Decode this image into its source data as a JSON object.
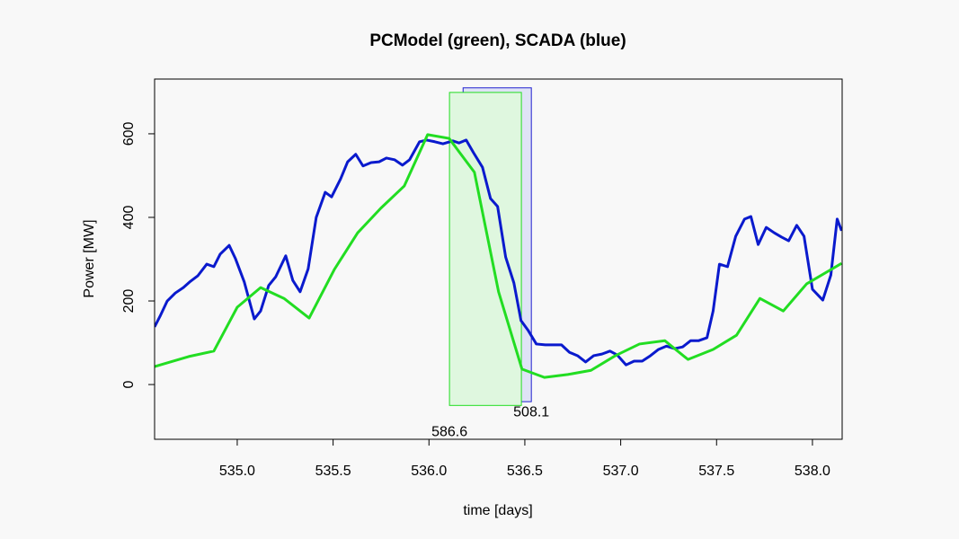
{
  "chart_data": {
    "type": "line",
    "title": "PCModel (green), SCADA (blue)",
    "xlabel": "time [days]",
    "ylabel": "Power [MW]",
    "xlim": [
      534.569,
      538.155
    ],
    "ylim": [
      -131,
      731
    ],
    "xticks": [
      {
        "value": 535,
        "label": "535.0"
      },
      535.5,
      {
        "value": 536,
        "label": "536.0"
      },
      536.5,
      {
        "value": 537,
        "label": "537.0"
      },
      537.5,
      {
        "value": 538,
        "label": "538.0"
      }
    ],
    "yticks": [
      0,
      200,
      400,
      600
    ],
    "series": [
      {
        "name": "PCModel",
        "color": "#22dd22",
        "x": [
          534.569,
          534.747,
          534.878,
          535.0,
          535.122,
          535.244,
          535.375,
          535.506,
          535.628,
          535.749,
          535.871,
          535.993,
          536.105,
          536.237,
          536.363,
          536.485,
          536.602,
          536.724,
          536.845,
          536.972,
          537.098,
          537.23,
          537.351,
          537.482,
          537.604,
          537.726,
          537.848,
          537.97,
          538.152
        ],
        "values": [
          43,
          67,
          80,
          185,
          232,
          206,
          159,
          275,
          363,
          422,
          475,
          598,
          589,
          508,
          222,
          37,
          17,
          24,
          34,
          69,
          97,
          105,
          60,
          84,
          118,
          206,
          176,
          241,
          290
        ]
      },
      {
        "name": "SCADA",
        "color": "#0a1acd",
        "x": [
          534.569,
          534.597,
          534.635,
          534.677,
          534.719,
          534.756,
          534.794,
          534.841,
          534.878,
          534.911,
          534.958,
          534.991,
          535.037,
          535.089,
          535.122,
          535.164,
          535.201,
          535.253,
          535.29,
          535.328,
          535.37,
          535.412,
          535.459,
          535.492,
          535.539,
          535.576,
          535.618,
          535.656,
          535.698,
          535.74,
          535.778,
          535.82,
          535.862,
          535.899,
          535.951,
          535.988,
          536.03,
          536.073,
          536.124,
          536.157,
          536.194,
          536.232,
          536.279,
          536.321,
          536.358,
          536.4,
          536.443,
          536.48,
          536.518,
          536.56,
          536.607,
          536.649,
          536.691,
          536.733,
          536.775,
          536.817,
          536.859,
          536.902,
          536.944,
          536.981,
          537.028,
          537.07,
          537.112,
          537.155,
          537.197,
          537.239,
          537.281,
          537.323,
          537.365,
          537.407,
          537.45,
          537.482,
          537.515,
          537.557,
          537.6,
          537.646,
          537.679,
          537.717,
          537.759,
          537.801,
          537.838,
          537.876,
          537.918,
          537.956,
          538.0,
          538.054,
          538.096,
          538.129,
          538.152
        ],
        "values": [
          138,
          163,
          200,
          219,
          232,
          247,
          260,
          288,
          282,
          312,
          333,
          301,
          245,
          157,
          176,
          237,
          258,
          308,
          249,
          222,
          277,
          400,
          460,
          449,
          492,
          533,
          551,
          523,
          531,
          533,
          542,
          538,
          525,
          538,
          581,
          585,
          581,
          576,
          583,
          578,
          585,
          555,
          520,
          445,
          426,
          305,
          243,
          153,
          129,
          97,
          95,
          95,
          95,
          77,
          69,
          54,
          69,
          73,
          80,
          71,
          47,
          56,
          56,
          69,
          84,
          92,
          86,
          90,
          105,
          105,
          112,
          176,
          288,
          282,
          355,
          396,
          402,
          335,
          376,
          363,
          353,
          344,
          381,
          355,
          228,
          202,
          262,
          396,
          368
        ]
      }
    ],
    "boxes": [
      {
        "color": "#2020d0",
        "fill": "#dfe3f6",
        "x": [
          536.178,
          536.534
        ],
        "y": [
          -41,
          710
        ],
        "label": "508.1",
        "label_at": "right"
      },
      {
        "color": "#22dd22",
        "fill": "#dff7df",
        "x": [
          536.107,
          536.482
        ],
        "y": [
          -50,
          699
        ],
        "label": "586.6",
        "label_at": "left"
      }
    ]
  }
}
